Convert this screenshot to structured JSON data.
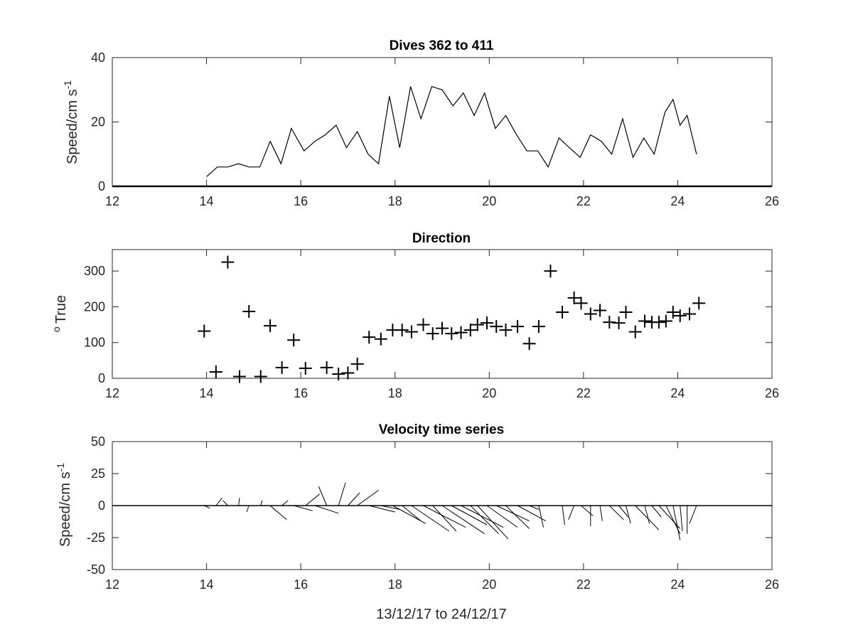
{
  "chart_data": [
    {
      "type": "line",
      "title": "Dives 362 to 411",
      "xlabel": "",
      "ylabel": "Speed/cm s",
      "ylabel_sup": "-1",
      "xlim": [
        12,
        26
      ],
      "ylim": [
        0,
        40
      ],
      "xticks": [
        12,
        14,
        16,
        18,
        20,
        22,
        24,
        26
      ],
      "yticks": [
        0,
        20,
        40
      ],
      "grid": false,
      "series": [
        {
          "x": [
            14.0,
            14.23,
            14.45,
            14.68,
            14.9,
            15.13,
            15.35,
            15.58,
            15.8,
            16.07,
            16.3,
            16.52,
            16.75,
            16.97,
            17.2,
            17.43,
            17.65,
            17.88,
            18.1,
            18.33,
            18.55,
            18.78,
            19.0,
            19.23,
            19.45,
            19.68,
            19.9,
            20.13,
            20.35,
            20.58,
            20.8,
            21.03,
            21.25,
            21.48,
            21.7,
            21.93,
            22.15,
            22.38,
            22.6,
            22.83,
            23.05,
            23.28,
            23.5,
            23.73,
            23.9,
            24.05,
            24.2,
            24.4
          ],
          "y": [
            3,
            6,
            6,
            7,
            6,
            6,
            14,
            7,
            18,
            11,
            14,
            16,
            19,
            12,
            17,
            10,
            7,
            28,
            12,
            31,
            21,
            31,
            30,
            25,
            29,
            22,
            29,
            18,
            22,
            16,
            11,
            11,
            6,
            15,
            12,
            9,
            16,
            14,
            10,
            21,
            9,
            15,
            10,
            23,
            27,
            19,
            22,
            10
          ]
        }
      ]
    },
    {
      "type": "scatter",
      "title": "Direction",
      "xlabel": "",
      "ylabel": "True",
      "ylabel_sup": "o",
      "xlim": [
        12,
        26
      ],
      "ylim": [
        0,
        360
      ],
      "xticks": [
        12,
        14,
        16,
        18,
        20,
        22,
        24,
        26
      ],
      "yticks": [
        0,
        100,
        200,
        300
      ],
      "grid": false,
      "marker": "+",
      "series": [
        {
          "x": [
            13.95,
            14.2,
            14.45,
            14.7,
            14.9,
            15.15,
            15.35,
            15.6,
            15.85,
            16.1,
            16.55,
            16.8,
            17.0,
            17.2,
            17.45,
            17.7,
            17.95,
            18.15,
            18.35,
            18.6,
            18.8,
            19.0,
            19.2,
            19.4,
            19.6,
            19.75,
            19.95,
            20.15,
            20.35,
            20.6,
            20.85,
            21.05,
            21.3,
            21.55,
            21.8,
            21.95,
            22.15,
            22.35,
            22.55,
            22.75,
            22.9,
            23.1,
            23.3,
            23.45,
            23.6,
            23.75,
            23.9,
            24.05,
            24.25,
            24.45
          ],
          "y": [
            132,
            18,
            325,
            5,
            187,
            5,
            147,
            30,
            107,
            28,
            30,
            12,
            15,
            40,
            115,
            110,
            135,
            135,
            130,
            150,
            125,
            140,
            125,
            128,
            135,
            150,
            155,
            145,
            135,
            145,
            97,
            145,
            300,
            185,
            225,
            210,
            180,
            190,
            157,
            155,
            185,
            130,
            160,
            157,
            157,
            160,
            185,
            175,
            180,
            210
          ]
        }
      ]
    },
    {
      "type": "line",
      "title": "Velocity time series",
      "xlabel": "13/12/17 to 24/12/17",
      "ylabel": "Speed/cm s",
      "ylabel_sup": "-1",
      "xlim": [
        12,
        26
      ],
      "ylim": [
        -50,
        50
      ],
      "xticks": [
        12,
        14,
        16,
        18,
        20,
        22,
        24,
        26
      ],
      "yticks": [
        -50,
        -25,
        0,
        25,
        50
      ],
      "grid": false,
      "baseline": 0,
      "sticks": [
        {
          "x": 13.95,
          "dx": 0.12,
          "dy": -2
        },
        {
          "x": 14.2,
          "dx": 0.13,
          "dy": 6
        },
        {
          "x": 14.45,
          "dx": -0.1,
          "dy": 4
        },
        {
          "x": 14.68,
          "dx": 0.02,
          "dy": 6
        },
        {
          "x": 14.9,
          "dx": -0.05,
          "dy": -5
        },
        {
          "x": 15.15,
          "dx": 0.03,
          "dy": 4
        },
        {
          "x": 15.35,
          "dx": 0.35,
          "dy": -11
        },
        {
          "x": 15.6,
          "dx": 0.13,
          "dy": 4
        },
        {
          "x": 15.85,
          "dx": 0.4,
          "dy": -4
        },
        {
          "x": 16.1,
          "dx": 0.3,
          "dy": 9
        },
        {
          "x": 16.3,
          "dx": 0.5,
          "dy": -6
        },
        {
          "x": 16.55,
          "dx": -0.17,
          "dy": 15
        },
        {
          "x": 16.8,
          "dx": 0.15,
          "dy": 18
        },
        {
          "x": 17.0,
          "dx": 0.25,
          "dy": 10
        },
        {
          "x": 17.2,
          "dx": 0.45,
          "dy": 12
        },
        {
          "x": 17.45,
          "dx": 0.55,
          "dy": -5
        },
        {
          "x": 17.7,
          "dx": 0.4,
          "dy": -3
        },
        {
          "x": 17.95,
          "dx": 0.7,
          "dy": -14
        },
        {
          "x": 18.15,
          "dx": 0.4,
          "dy": -12
        },
        {
          "x": 18.35,
          "dx": 0.8,
          "dy": -20
        },
        {
          "x": 18.6,
          "dx": 0.9,
          "dy": -17
        },
        {
          "x": 18.8,
          "dx": 0.5,
          "dy": -20
        },
        {
          "x": 19.0,
          "dx": 0.9,
          "dy": -22
        },
        {
          "x": 19.2,
          "dx": 0.75,
          "dy": -15
        },
        {
          "x": 19.4,
          "dx": 0.9,
          "dy": -17
        },
        {
          "x": 19.6,
          "dx": 0.6,
          "dy": -22
        },
        {
          "x": 19.75,
          "dx": 0.65,
          "dy": -26
        },
        {
          "x": 19.95,
          "dx": 0.65,
          "dy": -17
        },
        {
          "x": 20.15,
          "dx": 0.7,
          "dy": -12
        },
        {
          "x": 20.35,
          "dx": 0.5,
          "dy": -18
        },
        {
          "x": 20.6,
          "dx": 0.6,
          "dy": -12
        },
        {
          "x": 20.85,
          "dx": 0.2,
          "dy": -3
        },
        {
          "x": 21.05,
          "dx": 0.1,
          "dy": -17
        },
        {
          "x": 21.3,
          "dx": -0.5,
          "dy": 0
        },
        {
          "x": 21.55,
          "dx": 0.05,
          "dy": -15
        },
        {
          "x": 21.8,
          "dx": -0.12,
          "dy": -11
        },
        {
          "x": 21.95,
          "dx": 0.25,
          "dy": -8
        },
        {
          "x": 22.15,
          "dx": 0.0,
          "dy": -16
        },
        {
          "x": 22.35,
          "dx": 0.05,
          "dy": -12
        },
        {
          "x": 22.55,
          "dx": 0.3,
          "dy": -11
        },
        {
          "x": 22.75,
          "dx": 0.2,
          "dy": -9
        },
        {
          "x": 22.9,
          "dx": 0.1,
          "dy": -14
        },
        {
          "x": 23.1,
          "dx": 0.5,
          "dy": -19
        },
        {
          "x": 23.3,
          "dx": 0.1,
          "dy": -14
        },
        {
          "x": 23.45,
          "dx": 0.2,
          "dy": -9
        },
        {
          "x": 23.6,
          "dx": 0.45,
          "dy": -18
        },
        {
          "x": 23.75,
          "dx": 0.3,
          "dy": -22
        },
        {
          "x": 23.9,
          "dx": 0.15,
          "dy": -27
        },
        {
          "x": 24.05,
          "dx": 0.05,
          "dy": -20
        },
        {
          "x": 24.2,
          "dx": 0.0,
          "dy": -22
        },
        {
          "x": 24.4,
          "dx": -0.15,
          "dy": -14
        }
      ]
    }
  ]
}
